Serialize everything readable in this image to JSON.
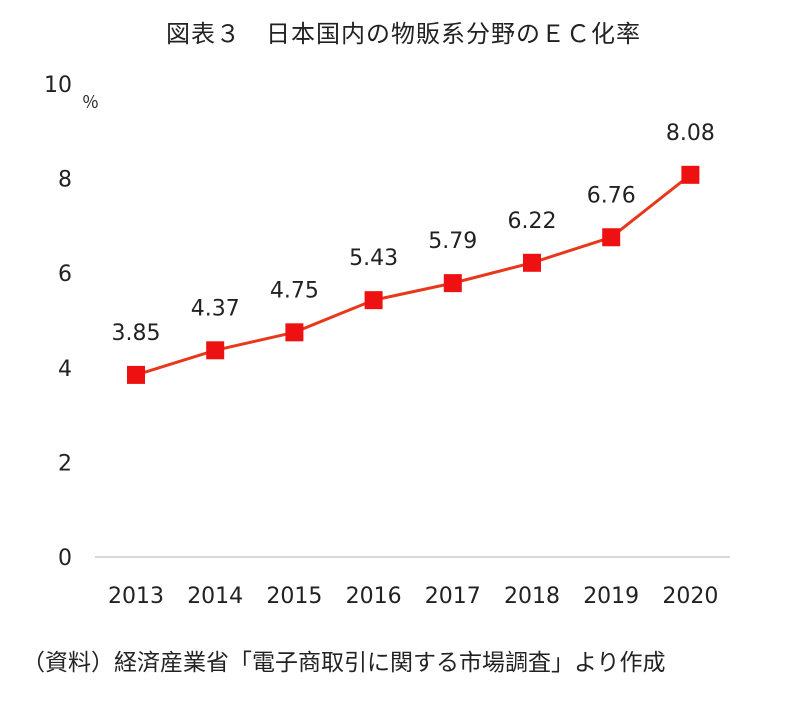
{
  "chart_data": {
    "type": "line",
    "title": "図表３　日本国内の物販系分野のＥＣ化率",
    "source": "（資料）経済産業省「電子商取引に関する市場調査」より作成",
    "unit": "％",
    "categories": [
      "2013",
      "2014",
      "2015",
      "2016",
      "2017",
      "2018",
      "2019",
      "2020"
    ],
    "series": [
      {
        "values": [
          3.85,
          4.37,
          4.75,
          5.43,
          5.79,
          6.22,
          6.76,
          8.08
        ],
        "labels": [
          "3.85",
          "4.37",
          "4.75",
          "5.43",
          "5.79",
          "6.22",
          "6.76",
          "8.08"
        ]
      }
    ],
    "ylim": [
      0,
      10
    ],
    "yticks": [
      "0",
      "2",
      "4",
      "6",
      "8",
      "10"
    ],
    "grid": false,
    "colors": {
      "line": "#e8381c",
      "marker": "#ee1111",
      "axis": "#d9d9d9"
    }
  }
}
